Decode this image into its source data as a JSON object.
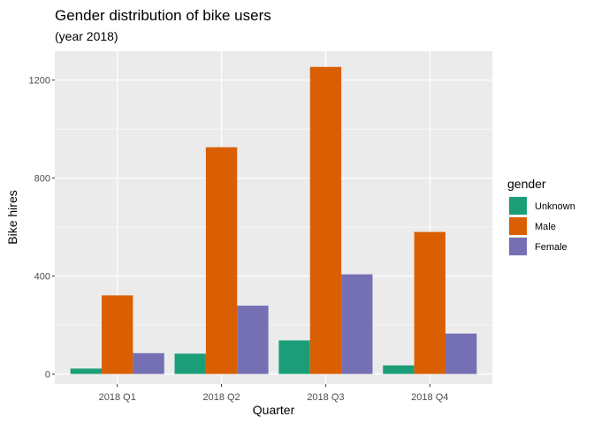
{
  "chart_data": {
    "type": "bar",
    "title": "Gender distribution of bike users",
    "subtitle": "(year 2018)",
    "xlabel": "Quarter",
    "ylabel": "Bike hires",
    "categories": [
      "2018 Q1",
      "2018 Q2",
      "2018 Q3",
      "2018 Q4"
    ],
    "series": [
      {
        "name": "Unknown",
        "color": "#1b9e77",
        "values": [
          22,
          83,
          137,
          35
        ]
      },
      {
        "name": "Male",
        "color": "#d95f02",
        "values": [
          321,
          926,
          1254,
          580
        ]
      },
      {
        "name": "Female",
        "color": "#7570b3",
        "values": [
          85,
          279,
          407,
          165
        ]
      }
    ],
    "ylim": [
      -42,
      1318
    ],
    "yticks": [
      0,
      400,
      800,
      1200
    ],
    "legend": {
      "title": "gender",
      "position": "right"
    },
    "grid": true,
    "background": "#ebebeb"
  }
}
